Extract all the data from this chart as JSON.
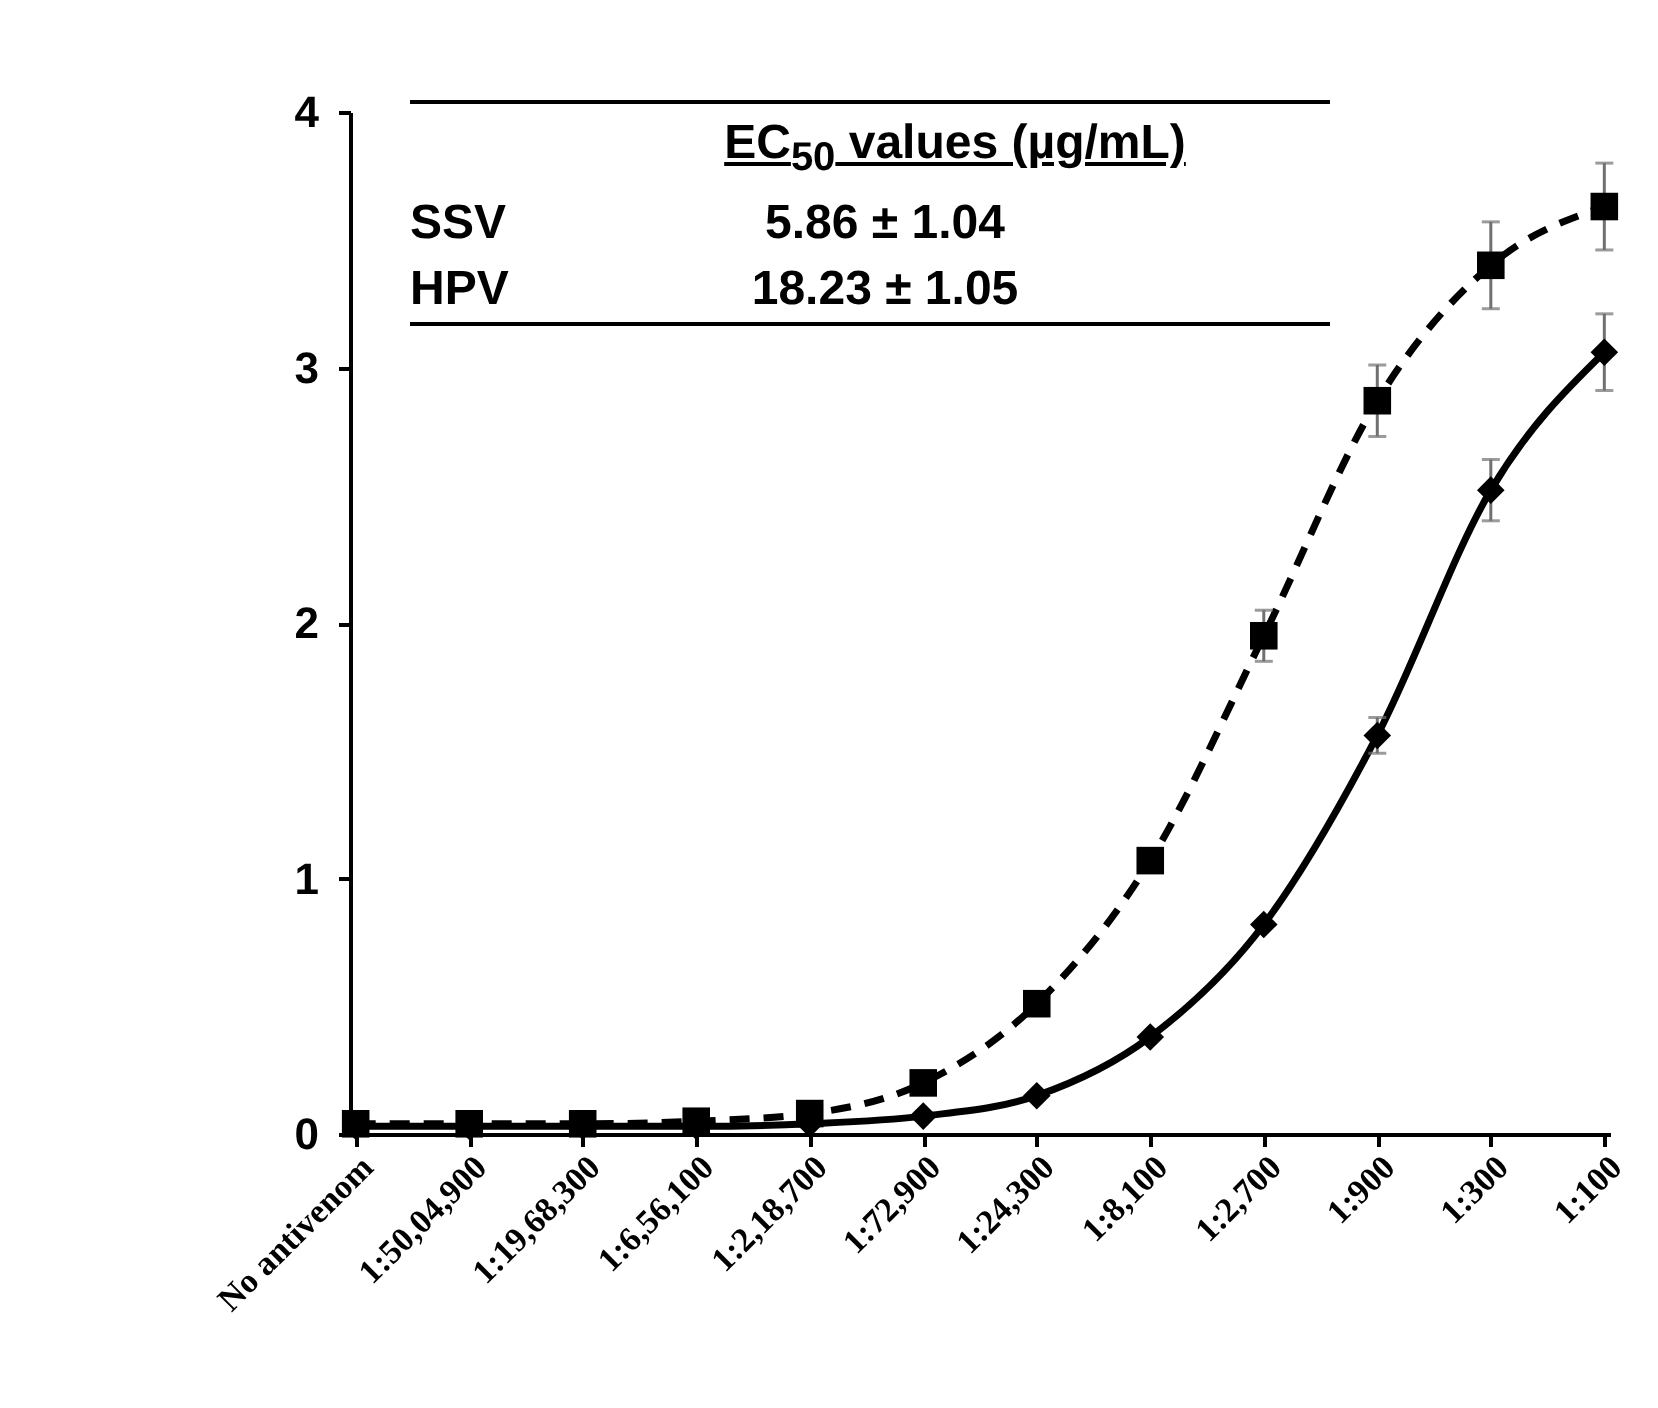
{
  "chart_data": {
    "type": "line",
    "categories": [
      "No antivenom",
      "1:50,04,900",
      "1:19,68,300",
      "1:6,56,100",
      "1:2,18,700",
      "1:72,900",
      "1:24,300",
      "1:8,100",
      "1:2,700",
      "1:900",
      "1:300",
      "1:100"
    ],
    "series": [
      {
        "color": "#000000",
        "marker": "square",
        "line_style": "dashed",
        "values": [
          0.04,
          0.04,
          0.04,
          0.05,
          0.08,
          0.2,
          0.51,
          1.07,
          1.95,
          2.87,
          3.4,
          3.63
        ],
        "errors": [
          null,
          null,
          null,
          null,
          null,
          null,
          null,
          null,
          0.1,
          0.14,
          0.17,
          0.17
        ]
      },
      {
        "color": "#000000",
        "marker": "diamond",
        "line_style": "solid",
        "values": [
          0.03,
          0.03,
          0.03,
          0.03,
          0.04,
          0.07,
          0.15,
          0.38,
          0.82,
          1.56,
          2.52,
          3.06
        ],
        "errors": [
          null,
          null,
          null,
          null,
          null,
          null,
          null,
          null,
          null,
          0.07,
          0.12,
          0.15
        ]
      }
    ],
    "ylim": [
      0,
      4
    ],
    "yticks": [
      0,
      1,
      2,
      3,
      4
    ],
    "annotations": [
      "EC$_{50}$ values (µg/mL)",
      "SSV",
      "5.86 ± 1.04",
      "HPV",
      "18.23 ± 1.05"
    ]
  }
}
